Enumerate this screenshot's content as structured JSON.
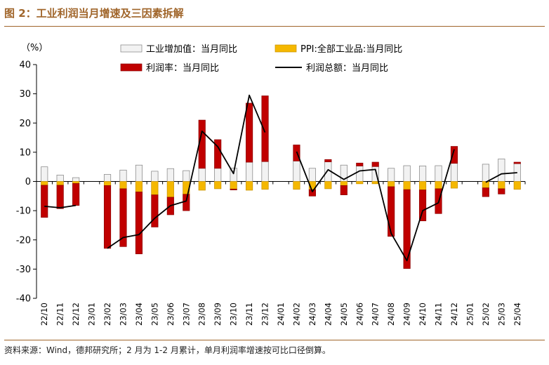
{
  "figure": {
    "title": "图 2：工业利润当月增速及三因素拆解",
    "source": "资料来源：Wind，德邦研究所；2 月为 1-2 月累计，单月利润率增速按可比口径倒算。"
  },
  "chart_data": {
    "type": "bar",
    "unit": "（%）",
    "stacked": true,
    "ylim": [
      -40,
      40
    ],
    "yticks": [
      -40,
      -30,
      -20,
      -10,
      0,
      10,
      20,
      30,
      40
    ],
    "categories": [
      "22/10",
      "22/11",
      "22/12",
      "23/01",
      "23/02",
      "23/03",
      "23/04",
      "23/05",
      "23/06",
      "23/07",
      "23/08",
      "23/09",
      "23/10",
      "23/11",
      "23/12",
      "24/01",
      "24/02",
      "24/03",
      "24/04",
      "24/05",
      "24/06",
      "24/07",
      "24/08",
      "24/09",
      "24/10",
      "24/11",
      "24/12",
      "25/01",
      "25/02",
      "25/03",
      "25/04"
    ],
    "series": [
      {
        "name": "工业增加值：当月同比",
        "kind": "bar",
        "color": "#f2f2f2",
        "stroke": "#7f7f7f",
        "values": [
          5.0,
          2.2,
          1.3,
          null,
          2.4,
          3.9,
          5.6,
          3.5,
          4.4,
          3.7,
          4.5,
          4.5,
          4.6,
          6.6,
          6.8,
          null,
          7.0,
          4.5,
          6.7,
          5.6,
          5.3,
          5.1,
          4.5,
          5.4,
          5.3,
          5.4,
          6.2,
          null,
          5.9,
          7.7,
          6.1
        ]
      },
      {
        "name": "PPI:全部工业品:当月同比",
        "kind": "bar",
        "color": "#f5b800",
        "stroke": "#c79100",
        "values": [
          -1.3,
          -1.3,
          -0.7,
          null,
          -1.4,
          -2.5,
          -3.6,
          -4.6,
          -5.4,
          -4.4,
          -3.0,
          -2.5,
          -2.6,
          -3.0,
          -2.7,
          null,
          -2.7,
          -2.8,
          -2.5,
          -1.4,
          -0.8,
          -0.8,
          -1.8,
          -2.8,
          -2.9,
          -2.5,
          -2.3,
          null,
          -2.2,
          -2.5,
          -2.7
        ]
      },
      {
        "name": "利润率：当月同比",
        "kind": "bar",
        "color": "#c00000",
        "stroke": "#8b0000",
        "values": [
          -11.0,
          -8.0,
          -7.5,
          null,
          -21.5,
          -19.8,
          -21.2,
          -11.0,
          -6.0,
          -5.6,
          16.5,
          9.8,
          -0.3,
          20.2,
          22.5,
          null,
          5.5,
          -2.2,
          0.8,
          -3.2,
          1.0,
          1.5,
          -17.0,
          -27.0,
          -10.6,
          -8.5,
          5.8,
          null,
          -3.0,
          -1.8,
          0.5
        ]
      },
      {
        "name": "利润总额：当月同比",
        "kind": "line",
        "color": "#000000",
        "values": [
          -8.5,
          -9.0,
          -8.2,
          null,
          -22.9,
          -19.2,
          -18.2,
          -12.6,
          -8.3,
          -6.7,
          17.2,
          11.9,
          2.7,
          29.5,
          16.8,
          null,
          10.2,
          -3.5,
          4.0,
          0.7,
          3.6,
          4.1,
          -17.8,
          -27.1,
          -10.0,
          -7.3,
          11.0,
          null,
          -0.3,
          2.6,
          3.0
        ]
      }
    ]
  }
}
